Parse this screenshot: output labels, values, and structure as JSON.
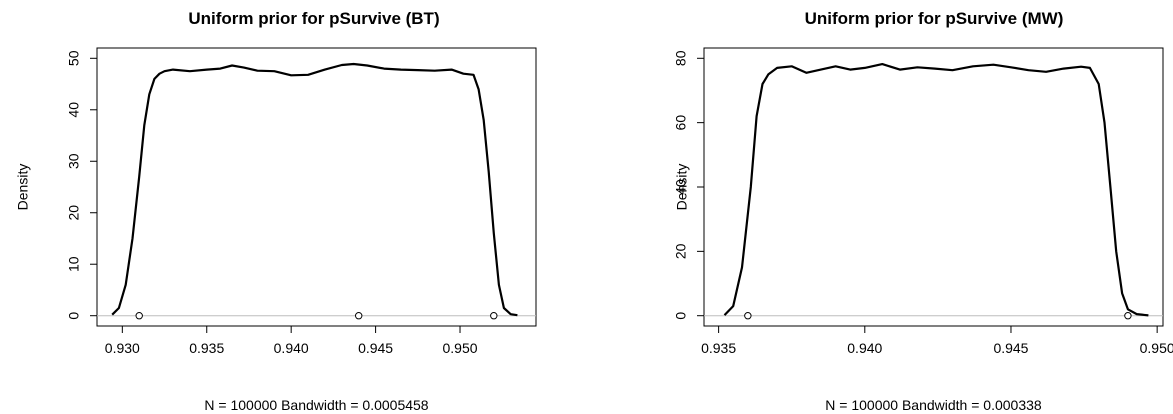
{
  "chart_data": [
    {
      "type": "line",
      "title": "Uniform prior for pSurvive (BT)",
      "xlabel": "N = 100000   Bandwidth = 0.0005458",
      "ylabel": "Density",
      "xlim": [
        0.9285,
        0.9545
      ],
      "ylim": [
        0,
        50
      ],
      "xticks": [
        0.93,
        0.935,
        0.94,
        0.945,
        0.95
      ],
      "xtick_labels": [
        "0.930",
        "0.935",
        "0.940",
        "0.945",
        "0.950"
      ],
      "yticks": [
        0,
        10,
        20,
        30,
        40,
        50
      ],
      "ytick_labels": [
        "0",
        "10",
        "20",
        "30",
        "40",
        "50"
      ],
      "grid": false,
      "series": [
        {
          "x": [
            0.9294,
            0.9298,
            0.9302,
            0.9306,
            0.931,
            0.9313,
            0.9316,
            0.9319,
            0.9322,
            0.9325,
            0.933,
            0.934,
            0.935,
            0.9358,
            0.9365,
            0.9372,
            0.938,
            0.939,
            0.94,
            0.941,
            0.942,
            0.943,
            0.9437,
            0.9445,
            0.9455,
            0.9465,
            0.9475,
            0.9485,
            0.9495,
            0.9502,
            0.9508,
            0.9511,
            0.9514,
            0.9517,
            0.952,
            0.9523,
            0.9526,
            0.953,
            0.9534
          ],
          "y": [
            0.2,
            1.5,
            6,
            15,
            27,
            37,
            43,
            46,
            47,
            47.5,
            47.8,
            47.5,
            47.8,
            48.0,
            48.6,
            48.2,
            47.6,
            47.5,
            46.7,
            46.8,
            47.8,
            48.7,
            48.9,
            48.6,
            48.0,
            47.8,
            47.7,
            47.6,
            47.8,
            47.0,
            46.8,
            44,
            38,
            28,
            16,
            6,
            1.5,
            0.3,
            0.1
          ]
        },
        {
          "name": "points",
          "type": "scatter",
          "x": [
            0.931,
            0.944,
            0.952
          ],
          "y": [
            0,
            0,
            0
          ]
        }
      ]
    },
    {
      "type": "line",
      "title": "Uniform prior for pSurvive (MW)",
      "xlabel": "N = 100000   Bandwidth = 0.000338",
      "ylabel": "Density",
      "xlim": [
        0.9345,
        0.9502
      ],
      "ylim": [
        0,
        80
      ],
      "xticks": [
        0.935,
        0.94,
        0.945,
        0.95
      ],
      "xtick_labels": [
        "0.935",
        "0.940",
        "0.945",
        "0.950"
      ],
      "yticks": [
        0,
        20,
        40,
        60,
        80
      ],
      "ytick_labels": [
        "0",
        "20",
        "40",
        "60",
        "80"
      ],
      "grid": false,
      "series": [
        {
          "x": [
            0.9352,
            0.9355,
            0.9358,
            0.9361,
            0.9363,
            0.9365,
            0.9367,
            0.937,
            0.9375,
            0.938,
            0.9385,
            0.939,
            0.9395,
            0.94,
            0.9406,
            0.9412,
            0.9418,
            0.9424,
            0.943,
            0.9437,
            0.9444,
            0.945,
            0.9456,
            0.9462,
            0.9468,
            0.9474,
            0.9477,
            0.948,
            0.9482,
            0.9484,
            0.9486,
            0.9488,
            0.949,
            0.9493,
            0.9497
          ],
          "y": [
            0.2,
            3,
            15,
            40,
            62,
            72,
            75,
            77,
            77.5,
            75.5,
            76.5,
            77.5,
            76.5,
            77,
            78.2,
            76.5,
            77.2,
            76.8,
            76.3,
            77.5,
            78.0,
            77.2,
            76.3,
            75.8,
            76.8,
            77.4,
            77,
            72,
            60,
            40,
            20,
            7,
            2,
            0.5,
            0.1
          ]
        },
        {
          "name": "points",
          "type": "scatter",
          "x": [
            0.936,
            0.949
          ],
          "y": [
            0,
            0
          ]
        }
      ]
    }
  ]
}
